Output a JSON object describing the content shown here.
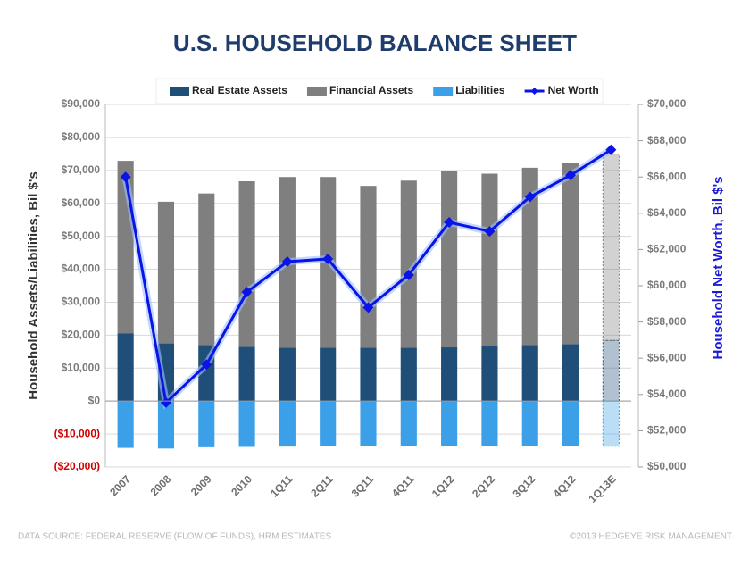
{
  "chart_data": {
    "type": "bar-line",
    "title": "U.S. HOUSEHOLD BALANCE SHEET",
    "ylabel": "Household Assets/Liabilities, Bil $'s",
    "y2label": "Household Net Worth, Bil $'s",
    "source": "DATA SOURCE: FEDERAL RESERVE (FLOW OF FUNDS), HRM ESTIMATES",
    "credit": "©2013 HEDGEYE RISK MANAGEMENT",
    "categories": [
      "2007",
      "2008",
      "2009",
      "2010",
      "1Q11",
      "2Q11",
      "3Q11",
      "4Q11",
      "1Q12",
      "2Q12",
      "3Q12",
      "4Q12",
      "1Q13E"
    ],
    "series": [
      {
        "name": "Real Estate Assets",
        "type": "bar",
        "color": "#1f4e79",
        "values": [
          20600,
          17500,
          17000,
          16500,
          16200,
          16200,
          16200,
          16200,
          16300,
          16600,
          17000,
          17300,
          18400
        ]
      },
      {
        "name": "Financial Assets",
        "type": "bar",
        "color": "#7f7f7f",
        "values": [
          52300,
          43000,
          46000,
          50200,
          51800,
          51800,
          49100,
          50700,
          53500,
          52400,
          53800,
          54900,
          56500
        ]
      },
      {
        "name": "Liabilities",
        "type": "bar",
        "color": "#3ca0e8",
        "values": [
          -14200,
          -14400,
          -14000,
          -13900,
          -13800,
          -13700,
          -13700,
          -13700,
          -13700,
          -13700,
          -13600,
          -13700,
          -13700
        ]
      },
      {
        "name": "Net Worth",
        "type": "line",
        "axis": "y2",
        "color": "#0a14e6",
        "values": [
          66000,
          53550,
          55650,
          59650,
          61330,
          61480,
          58800,
          60600,
          63500,
          63000,
          64900,
          66100,
          67500
        ]
      }
    ],
    "ylim": [
      -20000,
      90000
    ],
    "yticks": [
      {
        "value": -20000,
        "label": "($20,000)"
      },
      {
        "value": -10000,
        "label": "($10,000)"
      },
      {
        "value": 0,
        "label": "$0"
      },
      {
        "value": 10000,
        "label": "$10,000"
      },
      {
        "value": 20000,
        "label": "$20,000"
      },
      {
        "value": 30000,
        "label": "$30,000"
      },
      {
        "value": 40000,
        "label": "$40,000"
      },
      {
        "value": 50000,
        "label": "$50,000"
      },
      {
        "value": 60000,
        "label": "$60,000"
      },
      {
        "value": 70000,
        "label": "$70,000"
      },
      {
        "value": 80000,
        "label": "$80,000"
      },
      {
        "value": 90000,
        "label": "$90,000"
      }
    ],
    "y2lim": [
      50000,
      70000
    ],
    "y2ticks": [
      {
        "value": 50000,
        "label": "$50,000"
      },
      {
        "value": 52000,
        "label": "$52,000"
      },
      {
        "value": 54000,
        "label": "$54,000"
      },
      {
        "value": 56000,
        "label": "$56,000"
      },
      {
        "value": 58000,
        "label": "$58,000"
      },
      {
        "value": 60000,
        "label": "$60,000"
      },
      {
        "value": 62000,
        "label": "$62,000"
      },
      {
        "value": 64000,
        "label": "$64,000"
      },
      {
        "value": 66000,
        "label": "$66,000"
      },
      {
        "value": 68000,
        "label": "$68,000"
      },
      {
        "value": 70000,
        "label": "$70,000"
      }
    ],
    "grid": true,
    "legend": "top"
  }
}
